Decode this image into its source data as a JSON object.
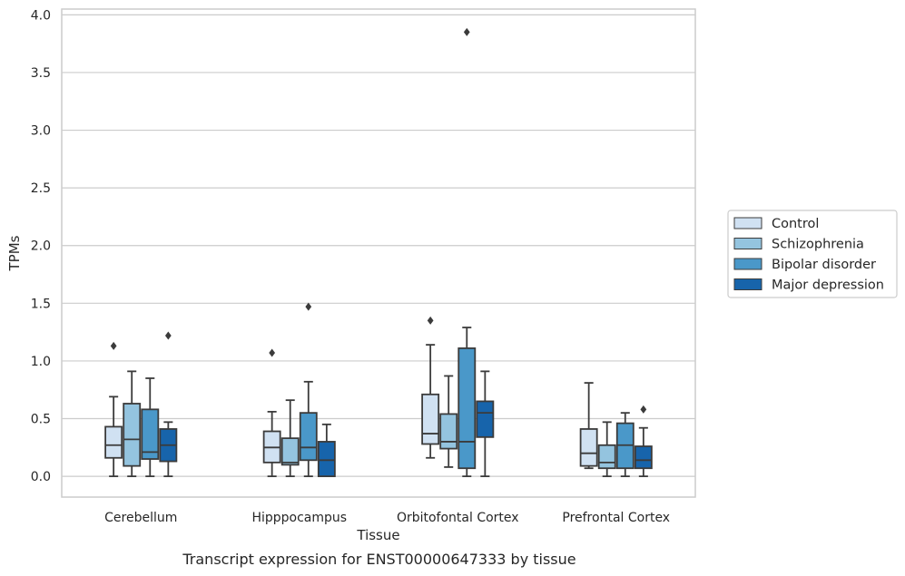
{
  "chart_data": {
    "type": "box",
    "xlabel": "Tissue",
    "ylabel": "TPMs",
    "caption": "Transcript expression for ENST00000647333 by tissue",
    "ylim": [
      -0.18,
      4.05
    ],
    "yticks": [
      "0.0",
      "0.5",
      "1.0",
      "1.5",
      "2.0",
      "2.5",
      "3.0",
      "3.5",
      "4.0"
    ],
    "grid": true,
    "legend_position": "right",
    "categories": [
      "Cerebellum",
      "Hipppocampus",
      "Orbitofontal Cortex",
      "Prefrontal Cortex"
    ],
    "series": [
      {
        "name": "Control",
        "color": "#d0e1f2",
        "boxes": [
          {
            "whislo": 0.0,
            "q1": 0.16,
            "med": 0.27,
            "q3": 0.43,
            "whishi": 0.69,
            "fliers": [
              1.13
            ]
          },
          {
            "whislo": 0.0,
            "q1": 0.12,
            "med": 0.25,
            "q3": 0.39,
            "whishi": 0.56,
            "fliers": [
              1.07
            ]
          },
          {
            "whislo": 0.16,
            "q1": 0.28,
            "med": 0.37,
            "q3": 0.71,
            "whishi": 1.14,
            "fliers": [
              1.35
            ]
          },
          {
            "whislo": 0.07,
            "q1": 0.09,
            "med": 0.2,
            "q3": 0.41,
            "whishi": 0.81,
            "fliers": []
          }
        ]
      },
      {
        "name": "Schizophrenia",
        "color": "#94c4df",
        "boxes": [
          {
            "whislo": 0.0,
            "q1": 0.09,
            "med": 0.32,
            "q3": 0.63,
            "whishi": 0.91,
            "fliers": []
          },
          {
            "whislo": 0.0,
            "q1": 0.1,
            "med": 0.12,
            "q3": 0.33,
            "whishi": 0.66,
            "fliers": []
          },
          {
            "whislo": 0.08,
            "q1": 0.24,
            "med": 0.3,
            "q3": 0.54,
            "whishi": 0.87,
            "fliers": []
          },
          {
            "whislo": 0.0,
            "q1": 0.07,
            "med": 0.12,
            "q3": 0.27,
            "whishi": 0.47,
            "fliers": []
          }
        ]
      },
      {
        "name": "Bipolar disorder",
        "color": "#4a98c9",
        "boxes": [
          {
            "whislo": 0.0,
            "q1": 0.15,
            "med": 0.21,
            "q3": 0.58,
            "whishi": 0.85,
            "fliers": []
          },
          {
            "whislo": 0.0,
            "q1": 0.14,
            "med": 0.25,
            "q3": 0.55,
            "whishi": 0.82,
            "fliers": [
              1.47
            ]
          },
          {
            "whislo": 0.0,
            "q1": 0.07,
            "med": 0.3,
            "q3": 1.11,
            "whishi": 1.29,
            "fliers": [
              3.85
            ]
          },
          {
            "whislo": 0.0,
            "q1": 0.07,
            "med": 0.27,
            "q3": 0.46,
            "whishi": 0.55,
            "fliers": []
          }
        ]
      },
      {
        "name": "Major depression",
        "color": "#1764ab",
        "boxes": [
          {
            "whislo": 0.0,
            "q1": 0.13,
            "med": 0.27,
            "q3": 0.41,
            "whishi": 0.47,
            "fliers": [
              1.22
            ]
          },
          {
            "whislo": 0.0,
            "q1": 0.0,
            "med": 0.14,
            "q3": 0.3,
            "whishi": 0.45,
            "fliers": []
          },
          {
            "whislo": 0.0,
            "q1": 0.34,
            "med": 0.55,
            "q3": 0.65,
            "whishi": 0.91,
            "fliers": []
          },
          {
            "whislo": 0.0,
            "q1": 0.07,
            "med": 0.14,
            "q3": 0.26,
            "whishi": 0.42,
            "fliers": [
              0.58
            ]
          }
        ]
      }
    ]
  }
}
